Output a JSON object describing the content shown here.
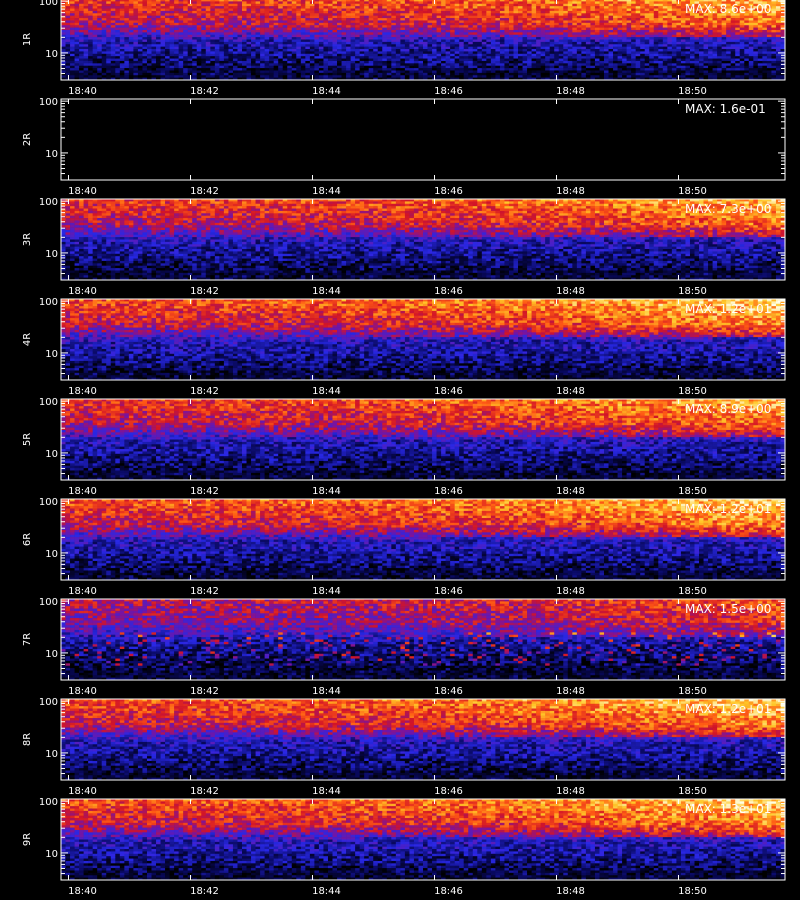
{
  "chart_data": {
    "type": "heatmap",
    "colormap": "black-blue-red-yellow-white",
    "background": "#000000",
    "x_ticks": [
      "18:40",
      "18:42",
      "18:44",
      "18:46",
      "18:48",
      "18:50"
    ],
    "y_ticks": [
      "100",
      "10"
    ],
    "y_scale": "log",
    "y_range": [
      3,
      110
    ],
    "panels": [
      {
        "label": "1R",
        "max_label": "MAX: 8.6e+00",
        "intensity": 0.85
      },
      {
        "label": "2R",
        "max_label": "MAX: 1.6e-01",
        "intensity": 0.0
      },
      {
        "label": "3R",
        "max_label": "MAX: 7.3e+00",
        "intensity": 0.85
      },
      {
        "label": "4R",
        "max_label": "MAX: 1.2e+01",
        "intensity": 0.9
      },
      {
        "label": "5R",
        "max_label": "MAX: 8.9e+00",
        "intensity": 0.85
      },
      {
        "label": "6R",
        "max_label": "MAX: 1.2e+01",
        "intensity": 0.9
      },
      {
        "label": "7R",
        "max_label": "MAX: 1.5e+00",
        "intensity": 0.7
      },
      {
        "label": "8R",
        "max_label": "MAX: 1.2e+01",
        "intensity": 0.9
      },
      {
        "label": "9R",
        "max_label": "MAX: 1.3e+01",
        "intensity": 0.9
      }
    ]
  }
}
